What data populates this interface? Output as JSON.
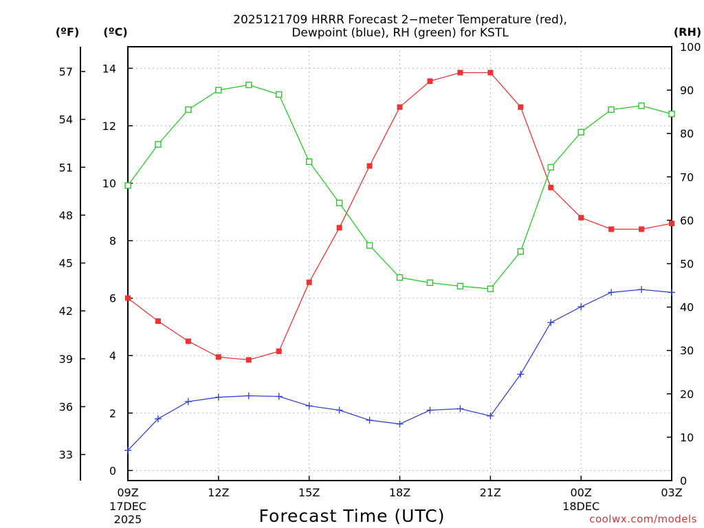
{
  "chart_data": {
    "type": "line",
    "title_line1": "2025121709 HRRR Forecast 2−meter Temperature (red),",
    "title_line2": "Dewpoint (blue), RH (green) for KSTL",
    "xlabel": "Forecast Time (UTC)",
    "credit": "coolwx.com/models",
    "left_outer_unit": "(ºF)",
    "left_inner_unit": "(ºC)",
    "right_unit": "(RH)",
    "x": [
      0,
      1,
      2,
      3,
      4,
      5,
      6,
      7,
      8,
      9,
      10,
      11,
      12,
      13,
      14,
      15,
      16,
      17,
      18
    ],
    "x_tick_labels": [
      {
        "x": 0,
        "line1": "09Z",
        "line2": "17DEC",
        "line3": "2025"
      },
      {
        "x": 3,
        "line1": "12Z",
        "line2": "",
        "line3": ""
      },
      {
        "x": 6,
        "line1": "15Z",
        "line2": "",
        "line3": ""
      },
      {
        "x": 9,
        "line1": "18Z",
        "line2": "",
        "line3": ""
      },
      {
        "x": 12,
        "line1": "21Z",
        "line2": "",
        "line3": ""
      },
      {
        "x": 15,
        "line1": "00Z",
        "line2": "18DEC",
        "line3": ""
      },
      {
        "x": 18,
        "line1": "03Z",
        "line2": "",
        "line3": ""
      }
    ],
    "y_celsius_range": [
      -0.35,
      14.75
    ],
    "y_celsius_ticks": [
      "0",
      "2",
      "4",
      "6",
      "8",
      "10",
      "12",
      "14"
    ],
    "y_fahrenheit_ticks": [
      "33",
      "36",
      "39",
      "42",
      "45",
      "48",
      "51",
      "54",
      "57"
    ],
    "y_rh_range": [
      0,
      100
    ],
    "y_rh_ticks": [
      "0",
      "10",
      "20",
      "30",
      "40",
      "50",
      "60",
      "70",
      "80",
      "90",
      "100"
    ],
    "series": [
      {
        "name": "2-meter Temperature",
        "axis": "celsius",
        "color": "#ee3333",
        "marker": "filled-square",
        "values": [
          6.0,
          5.2,
          4.5,
          3.95,
          3.85,
          4.15,
          6.55,
          8.45,
          10.6,
          12.65,
          13.55,
          13.85,
          13.85,
          12.65,
          9.85,
          8.8,
          8.4,
          8.4,
          8.6
        ]
      },
      {
        "name": "Dewpoint",
        "axis": "celsius",
        "color": "#3344dd",
        "marker": "plus",
        "values": [
          0.7,
          1.8,
          2.4,
          2.55,
          2.6,
          2.58,
          2.25,
          2.1,
          1.75,
          1.62,
          2.1,
          2.15,
          1.9,
          3.35,
          5.15,
          5.7,
          6.2,
          6.3,
          6.2
        ]
      },
      {
        "name": "RH",
        "axis": "rh",
        "color": "#22cc22",
        "marker": "open-square",
        "values": [
          68,
          77.5,
          85.5,
          90,
          91.2,
          89,
          73.5,
          64,
          54.2,
          46.8,
          45.6,
          44.8,
          44.2,
          52.8,
          72.2,
          80.3,
          85.5,
          86.4,
          84.5
        ]
      }
    ]
  }
}
